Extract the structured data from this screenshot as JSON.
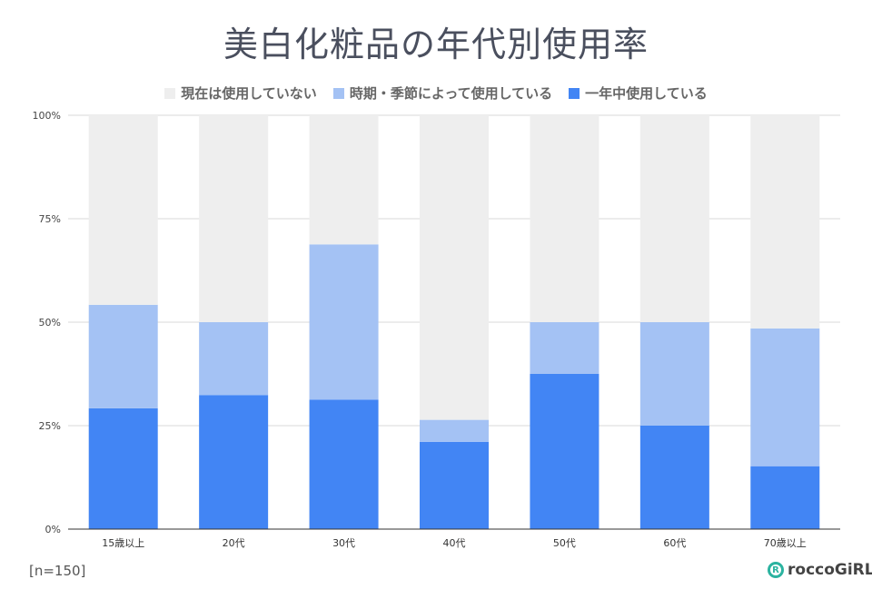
{
  "chart_data": {
    "type": "bar",
    "stacked": true,
    "title": "美白化粧品の年代別使用率",
    "categories": [
      "15歳以上",
      "20代",
      "30代",
      "40代",
      "50代",
      "60代",
      "70歳以上"
    ],
    "series": [
      {
        "name": "一年中使用している",
        "color": "#4285f4",
        "values": [
          29.2,
          32.4,
          31.3,
          21.1,
          37.5,
          25.0,
          15.2
        ]
      },
      {
        "name": "時期・季節によって使用している",
        "color": "#a4c2f4",
        "values": [
          25.0,
          17.6,
          37.5,
          5.3,
          12.5,
          25.0,
          33.3
        ]
      },
      {
        "name": "現在は使用していない",
        "color": "#eeeeee",
        "values": [
          45.8,
          50.0,
          31.2,
          73.6,
          50.0,
          50.0,
          51.5
        ]
      }
    ],
    "legend_order": [
      "現在は使用していない",
      "時期・季節によって使用している",
      "一年中使用している"
    ],
    "ylim": [
      0,
      100
    ],
    "yticks": [
      "0%",
      "25%",
      "50%",
      "75%",
      "100%"
    ],
    "grid": true,
    "legend_position": "top"
  },
  "note": "[n=150]",
  "logo": "roccoGiRL"
}
